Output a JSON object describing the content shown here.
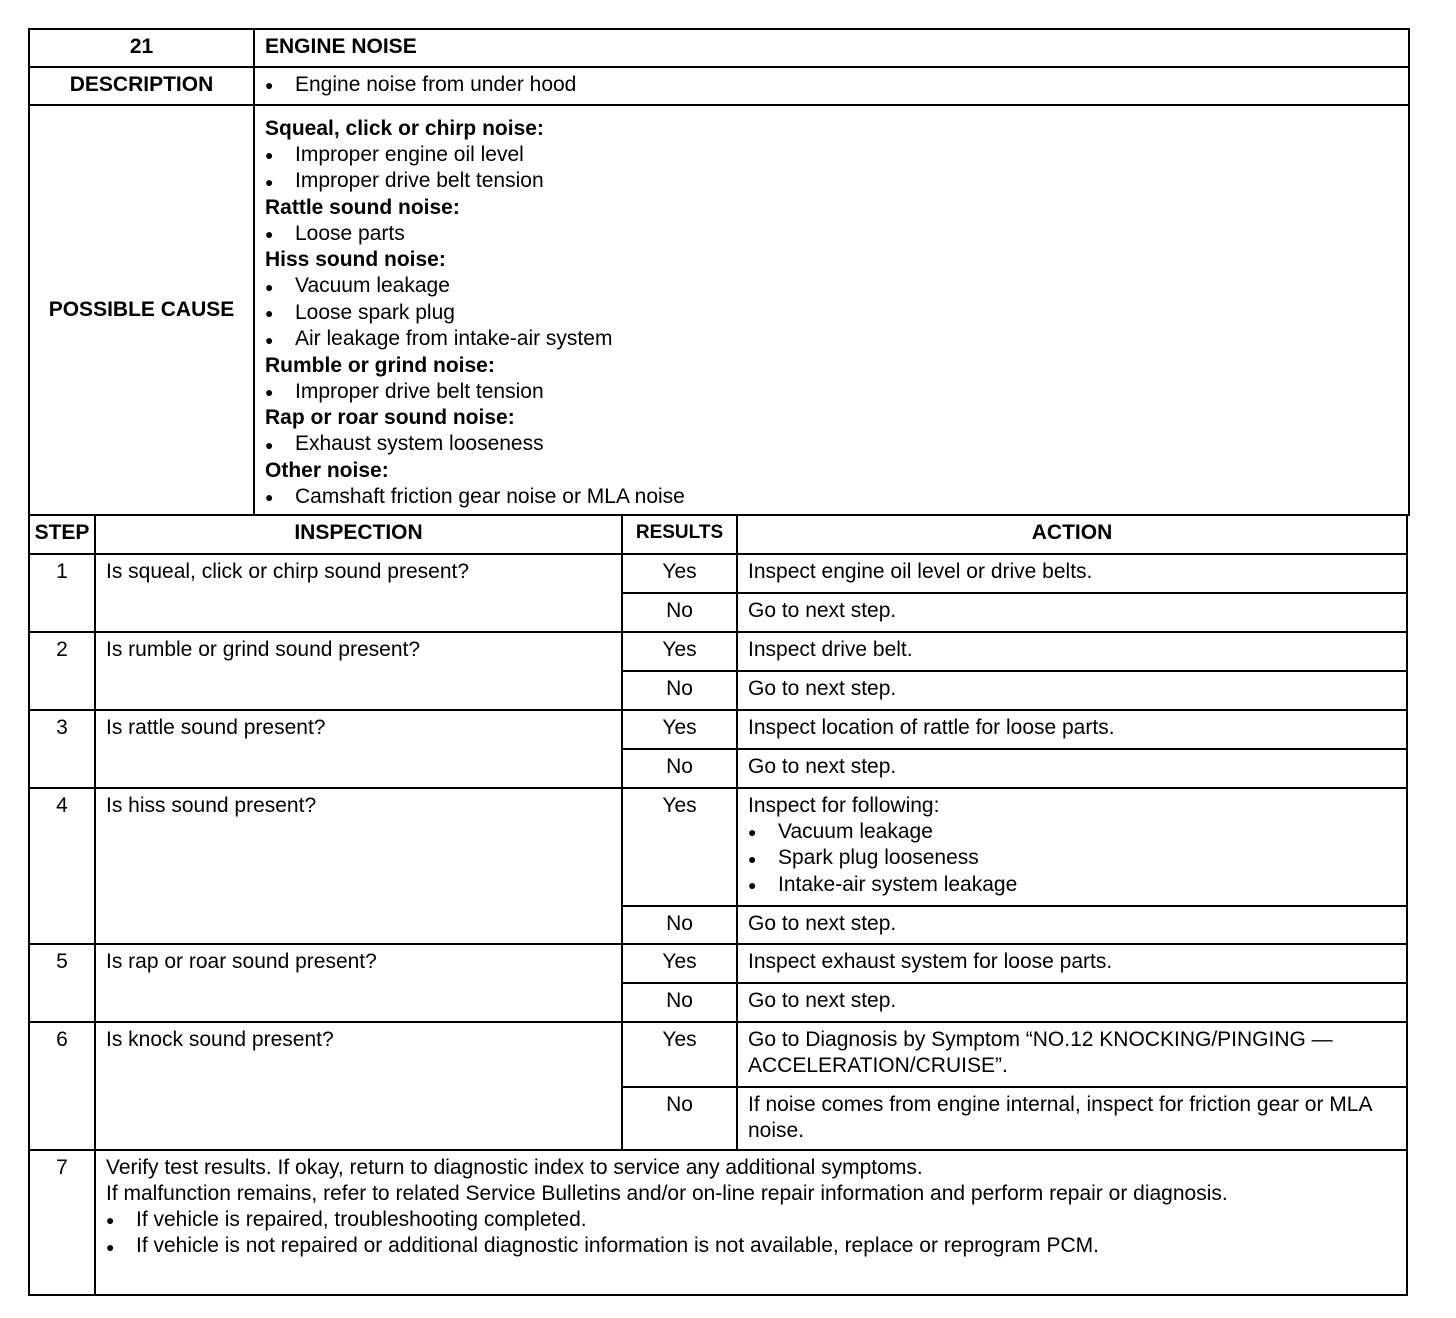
{
  "header": {
    "number": "21",
    "title": "ENGINE NOISE"
  },
  "description": {
    "label": "DESCRIPTION",
    "items": [
      "Engine noise from under hood"
    ]
  },
  "possible_cause": {
    "label": "POSSIBLE CAUSE",
    "groups": [
      {
        "heading": "Squeal, click or chirp noise:",
        "items": [
          "Improper engine oil level",
          "Improper drive belt tension"
        ]
      },
      {
        "heading": "Rattle sound noise:",
        "items": [
          "Loose parts"
        ]
      },
      {
        "heading": "Hiss sound noise:",
        "items": [
          "Vacuum leakage",
          "Loose spark plug",
          "Air leakage from intake-air system"
        ]
      },
      {
        "heading": "Rumble or grind noise:",
        "items": [
          "Improper drive belt tension"
        ]
      },
      {
        "heading": "Rap or roar sound noise:",
        "items": [
          "Exhaust system looseness"
        ]
      },
      {
        "heading": "Other noise:",
        "items": [
          "Camshaft friction gear noise or MLA noise"
        ]
      }
    ]
  },
  "columns": {
    "step": "STEP",
    "inspection": "INSPECTION",
    "results": "RESULTS",
    "action": "ACTION"
  },
  "steps": [
    {
      "step": "1",
      "inspection": "Is squeal, click or chirp sound present?",
      "yes": "Yes",
      "yes_action": "Inspect engine oil level or drive belts.",
      "no": "No",
      "no_action": "Go to next step."
    },
    {
      "step": "2",
      "inspection": "Is rumble or grind sound present?",
      "yes": "Yes",
      "yes_action": "Inspect drive belt.",
      "no": "No",
      "no_action": "Go to next step."
    },
    {
      "step": "3",
      "inspection": "Is rattle sound present?",
      "yes": "Yes",
      "yes_action": "Inspect location of rattle for loose parts.",
      "no": "No",
      "no_action": "Go to next step."
    },
    {
      "step": "4",
      "inspection": "Is hiss sound present?",
      "yes": "Yes",
      "yes_action": "Inspect for following:",
      "yes_items": [
        "Vacuum leakage",
        "Spark plug looseness",
        "Intake-air system leakage"
      ],
      "no": "No",
      "no_action": "Go to next step."
    },
    {
      "step": "5",
      "inspection": "Is rap or roar sound present?",
      "yes": "Yes",
      "yes_action": "Inspect exhaust system for loose parts.",
      "no": "No",
      "no_action": "Go to next step."
    },
    {
      "step": "6",
      "inspection": "Is knock sound present?",
      "yes": "Yes",
      "yes_action": "Go to Diagnosis by Symptom “NO.12 KNOCKING/PINGING — ACCELERATION/CRUISE”.",
      "no": "No",
      "no_action": "If noise comes from engine internal, inspect for friction gear or MLA noise."
    }
  ],
  "final": {
    "step": "7",
    "line1": "Verify test results. If okay, return to diagnostic index to service any additional symptoms.",
    "line2": "If malfunction remains, refer to related Service Bulletins and/or on-line repair information and perform repair or diagnosis.",
    "items": [
      "If vehicle is repaired, troubleshooting completed.",
      "If vehicle is not repaired or additional diagnostic information is not available, replace or reprogram PCM."
    ]
  }
}
